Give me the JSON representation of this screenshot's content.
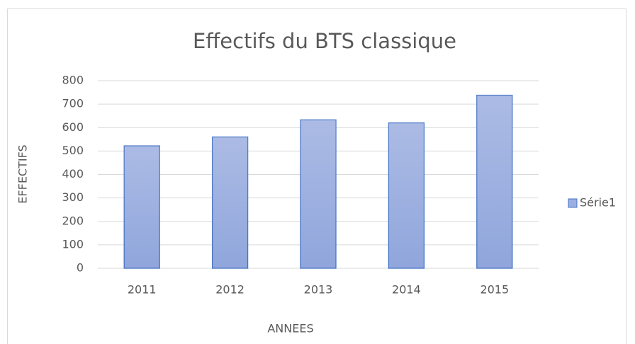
{
  "chart_data": {
    "type": "bar",
    "title": "Effectifs du BTS classique",
    "x_label": "ANNEES",
    "y_label": "EFFECTIFS",
    "categories": [
      "2011",
      "2012",
      "2013",
      "2014",
      "2015"
    ],
    "series": [
      {
        "name": "Série1",
        "color": "#9dafe0",
        "values": [
          522,
          560,
          633,
          620,
          738
        ]
      }
    ],
    "ylim": [
      0,
      800
    ],
    "yticks": [
      0,
      100,
      200,
      300,
      400,
      500,
      600,
      700,
      800
    ],
    "grid": true,
    "legend": "right"
  }
}
